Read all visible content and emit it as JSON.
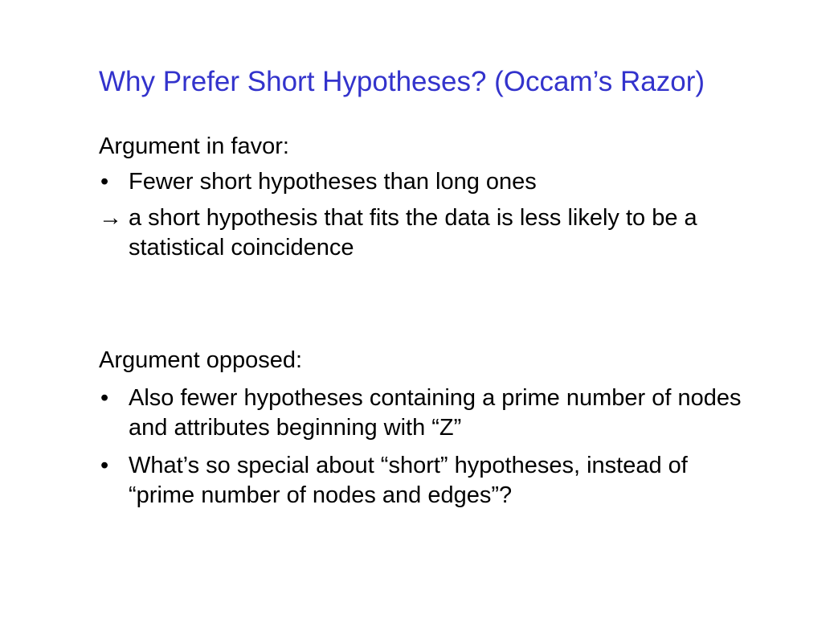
{
  "slide": {
    "title": "Why Prefer Short Hypotheses? (Occam’s Razor)",
    "favor": {
      "heading": "Argument in favor:",
      "bullet_symbol": "•",
      "bullet": "Fewer short hypotheses than long ones",
      "arrow_symbol": "→",
      "implication": "a short hypothesis that fits the data is less likely to be a statistical coincidence"
    },
    "opposed": {
      "heading": "Argument opposed:",
      "bullet_symbol": "•",
      "bullets": [
        "Also fewer hypotheses containing a prime number of nodes and attributes beginning with “Z”",
        "What’s so special about “short” hypotheses, instead of “prime number of nodes and edges”?"
      ]
    }
  }
}
